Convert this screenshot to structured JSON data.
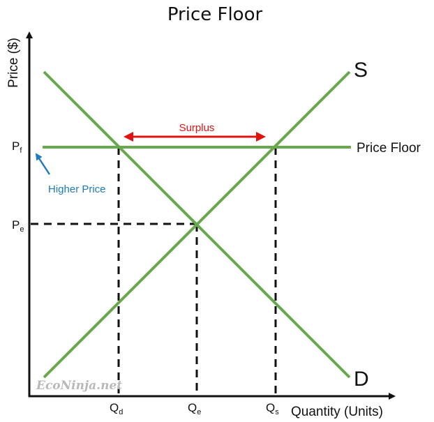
{
  "title": "Price Floor",
  "y_axis_title": "Price ($)",
  "x_axis_title": "Quantity (Units)",
  "ticks": {
    "pf": {
      "main": "P",
      "sub": "f"
    },
    "pe": {
      "main": "P",
      "sub": "e"
    },
    "qd": {
      "main": "Q",
      "sub": "d"
    },
    "qe": {
      "main": "Q",
      "sub": "e"
    },
    "qs": {
      "main": "Q",
      "sub": "s"
    }
  },
  "supply_label": "S",
  "demand_label": "D",
  "price_floor_label": "Price Floor",
  "surplus_label": "Surplus",
  "higher_price_label": "Higher Price",
  "watermark": "EcoNinja.net",
  "colors": {
    "curves": "#6aa84f",
    "surplus_arrow": "#e0140f",
    "higher_price_arrow": "#1f7bbf",
    "axes": "#111111"
  }
}
